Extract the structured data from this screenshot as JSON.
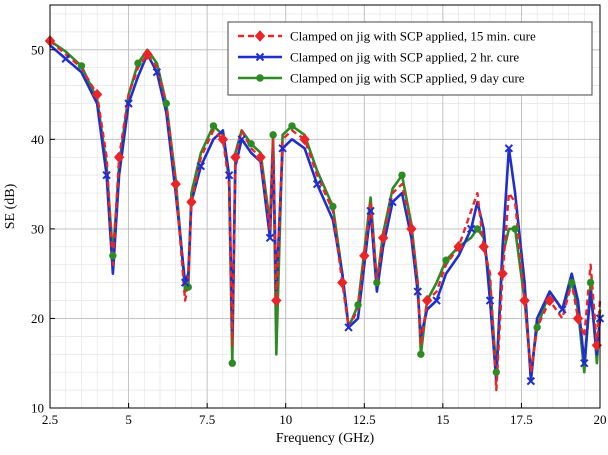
{
  "chart_data": {
    "type": "line",
    "xlabel": "Frequency (GHz)",
    "ylabel": "SE (dB)",
    "xlim": [
      2.5,
      20
    ],
    "ylim": [
      10,
      55
    ],
    "xticks": [
      2.5,
      5,
      7.5,
      10,
      12.5,
      15,
      17.5,
      20
    ],
    "xtick_labels": [
      "2.5",
      "5",
      "7.5",
      "10",
      "12.5",
      "15",
      "17.5",
      "20"
    ],
    "yticks": [
      10,
      20,
      30,
      40,
      50
    ],
    "ytick_labels": [
      "10",
      "20",
      "30",
      "40",
      "50"
    ],
    "grid": true,
    "minor_grid": true,
    "legend_position": "top-right",
    "series": [
      {
        "name": "Clamped on jig with SCP applied, 15 min. cure",
        "color": "#e8262a",
        "line_style": "dashed",
        "marker": "diamond",
        "x": [
          2.5,
          3.0,
          3.5,
          4.0,
          4.3,
          4.5,
          4.7,
          5.0,
          5.3,
          5.6,
          5.9,
          6.2,
          6.5,
          6.8,
          6.9,
          7.0,
          7.3,
          7.7,
          8.0,
          8.2,
          8.3,
          8.4,
          8.6,
          8.9,
          9.2,
          9.5,
          9.6,
          9.7,
          9.9,
          10.2,
          10.6,
          11.0,
          11.5,
          11.8,
          12.0,
          12.3,
          12.5,
          12.7,
          12.9,
          13.1,
          13.4,
          13.7,
          14.0,
          14.2,
          14.3,
          14.5,
          14.8,
          15.1,
          15.5,
          15.9,
          16.1,
          16.3,
          16.5,
          16.7,
          16.9,
          17.1,
          17.3,
          17.6,
          17.8,
          18.0,
          18.4,
          18.8,
          19.1,
          19.3,
          19.5,
          19.7,
          19.9,
          20.0
        ],
        "values": [
          51,
          49.5,
          48,
          45,
          38,
          26,
          38,
          45,
          48,
          49.5,
          48,
          44,
          35,
          22,
          24,
          33,
          38,
          41,
          40,
          35,
          17,
          38,
          41,
          39,
          38,
          30,
          40,
          22,
          40,
          41,
          40,
          36,
          32,
          24,
          19,
          21,
          27,
          33,
          24,
          29,
          34,
          35,
          30,
          24,
          17,
          22,
          23,
          26,
          28,
          32,
          34,
          28,
          25,
          12,
          25,
          34,
          33,
          22,
          14,
          19,
          22,
          20,
          24,
          20,
          18,
          26,
          17,
          22
        ]
      },
      {
        "name": "Clamped on jig with SCP applied, 2 hr. cure",
        "color": "#1f2fcc",
        "line_style": "solid",
        "marker": "x",
        "x": [
          2.5,
          3.0,
          3.5,
          4.0,
          4.3,
          4.5,
          4.7,
          5.0,
          5.3,
          5.6,
          5.9,
          6.2,
          6.5,
          6.8,
          6.9,
          7.0,
          7.3,
          7.7,
          8.0,
          8.2,
          8.3,
          8.4,
          8.6,
          8.9,
          9.2,
          9.5,
          9.6,
          9.7,
          9.9,
          10.2,
          10.6,
          11.0,
          11.5,
          11.8,
          12.0,
          12.3,
          12.5,
          12.7,
          12.9,
          13.1,
          13.4,
          13.7,
          14.0,
          14.2,
          14.3,
          14.5,
          14.8,
          15.1,
          15.5,
          15.9,
          16.1,
          16.3,
          16.5,
          16.7,
          16.9,
          17.1,
          17.3,
          17.6,
          17.8,
          18.0,
          18.4,
          18.8,
          19.1,
          19.3,
          19.5,
          19.7,
          19.9,
          20.0
        ],
        "values": [
          50.5,
          49,
          47.5,
          44,
          36,
          25,
          36,
          44,
          47,
          49.5,
          47.5,
          43,
          34,
          24,
          25,
          33,
          37,
          40,
          41,
          36,
          18,
          37,
          40,
          38.5,
          37.5,
          29,
          39,
          23,
          39,
          40,
          39,
          35,
          31,
          25,
          19,
          20,
          26,
          32,
          23,
          28,
          33,
          34,
          29,
          23,
          18,
          21,
          22,
          25,
          27,
          30,
          33,
          30,
          22,
          13,
          28,
          39,
          34,
          24,
          13,
          20,
          23,
          21,
          25,
          22,
          15,
          23,
          16,
          20
        ]
      },
      {
        "name": "Clamped on jig with SCP applied, 9 day cure",
        "color": "#2e8a22",
        "line_style": "solid",
        "marker": "circle",
        "x": [
          2.5,
          3.0,
          3.5,
          4.0,
          4.3,
          4.5,
          4.7,
          5.0,
          5.3,
          5.6,
          5.9,
          6.2,
          6.5,
          6.8,
          6.9,
          7.0,
          7.3,
          7.7,
          8.0,
          8.2,
          8.3,
          8.4,
          8.6,
          8.9,
          9.2,
          9.5,
          9.6,
          9.7,
          9.9,
          10.2,
          10.6,
          11.0,
          11.5,
          11.8,
          12.0,
          12.3,
          12.5,
          12.7,
          12.9,
          13.1,
          13.4,
          13.7,
          14.0,
          14.2,
          14.3,
          14.5,
          14.8,
          15.1,
          15.5,
          15.9,
          16.1,
          16.3,
          16.5,
          16.7,
          16.9,
          17.1,
          17.3,
          17.6,
          17.8,
          18.0,
          18.4,
          18.8,
          19.1,
          19.3,
          19.5,
          19.7,
          19.9,
          20.0
        ],
        "values": [
          51,
          49.8,
          48.2,
          44.5,
          37,
          27,
          37,
          45,
          48.5,
          50,
          48.5,
          44,
          35.5,
          23,
          23.5,
          34,
          38.5,
          41.5,
          40.5,
          35.5,
          15,
          38.5,
          41,
          39.5,
          38.5,
          30.5,
          40.5,
          16,
          40.5,
          41.5,
          40.5,
          36.5,
          32.5,
          25,
          19,
          21.5,
          27.5,
          33.5,
          24,
          29.5,
          34.5,
          36,
          30.5,
          24,
          16,
          22,
          24,
          26.5,
          28,
          29,
          30,
          29,
          24,
          14,
          27,
          30,
          30,
          22,
          14,
          19,
          23,
          21,
          24,
          21,
          14,
          24,
          15,
          21
        ]
      }
    ]
  }
}
